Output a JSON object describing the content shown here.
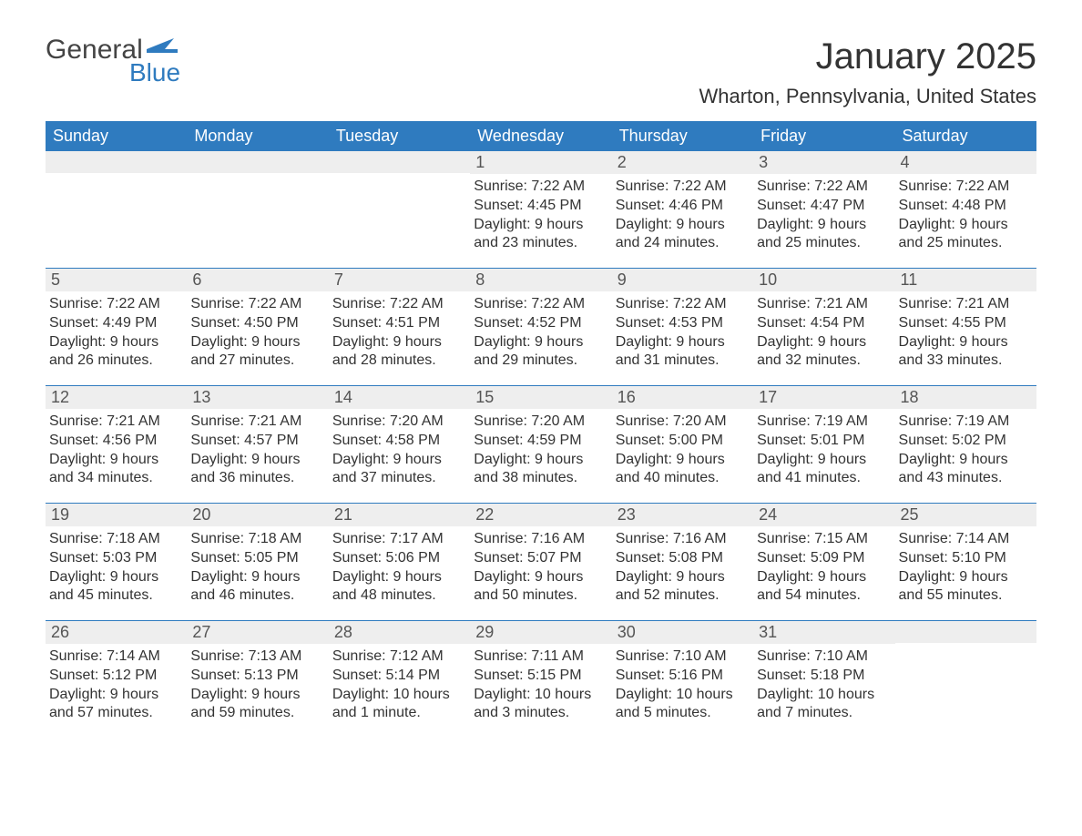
{
  "logo": {
    "general": "General",
    "blue": "Blue",
    "flag_color": "#2f7bbf"
  },
  "title": "January 2025",
  "location": "Wharton, Pennsylvania, United States",
  "header_bg": "#2f7bbf",
  "header_fg": "#ffffff",
  "daynum_bg": "#eeeeee",
  "row_border": "#2f7bbf",
  "weekdays": [
    "Sunday",
    "Monday",
    "Tuesday",
    "Wednesday",
    "Thursday",
    "Friday",
    "Saturday"
  ],
  "weeks": [
    [
      null,
      null,
      null,
      {
        "n": "1",
        "sunrise": "Sunrise: 7:22 AM",
        "sunset": "Sunset: 4:45 PM",
        "day1": "Daylight: 9 hours",
        "day2": "and 23 minutes."
      },
      {
        "n": "2",
        "sunrise": "Sunrise: 7:22 AM",
        "sunset": "Sunset: 4:46 PM",
        "day1": "Daylight: 9 hours",
        "day2": "and 24 minutes."
      },
      {
        "n": "3",
        "sunrise": "Sunrise: 7:22 AM",
        "sunset": "Sunset: 4:47 PM",
        "day1": "Daylight: 9 hours",
        "day2": "and 25 minutes."
      },
      {
        "n": "4",
        "sunrise": "Sunrise: 7:22 AM",
        "sunset": "Sunset: 4:48 PM",
        "day1": "Daylight: 9 hours",
        "day2": "and 25 minutes."
      }
    ],
    [
      {
        "n": "5",
        "sunrise": "Sunrise: 7:22 AM",
        "sunset": "Sunset: 4:49 PM",
        "day1": "Daylight: 9 hours",
        "day2": "and 26 minutes."
      },
      {
        "n": "6",
        "sunrise": "Sunrise: 7:22 AM",
        "sunset": "Sunset: 4:50 PM",
        "day1": "Daylight: 9 hours",
        "day2": "and 27 minutes."
      },
      {
        "n": "7",
        "sunrise": "Sunrise: 7:22 AM",
        "sunset": "Sunset: 4:51 PM",
        "day1": "Daylight: 9 hours",
        "day2": "and 28 minutes."
      },
      {
        "n": "8",
        "sunrise": "Sunrise: 7:22 AM",
        "sunset": "Sunset: 4:52 PM",
        "day1": "Daylight: 9 hours",
        "day2": "and 29 minutes."
      },
      {
        "n": "9",
        "sunrise": "Sunrise: 7:22 AM",
        "sunset": "Sunset: 4:53 PM",
        "day1": "Daylight: 9 hours",
        "day2": "and 31 minutes."
      },
      {
        "n": "10",
        "sunrise": "Sunrise: 7:21 AM",
        "sunset": "Sunset: 4:54 PM",
        "day1": "Daylight: 9 hours",
        "day2": "and 32 minutes."
      },
      {
        "n": "11",
        "sunrise": "Sunrise: 7:21 AM",
        "sunset": "Sunset: 4:55 PM",
        "day1": "Daylight: 9 hours",
        "day2": "and 33 minutes."
      }
    ],
    [
      {
        "n": "12",
        "sunrise": "Sunrise: 7:21 AM",
        "sunset": "Sunset: 4:56 PM",
        "day1": "Daylight: 9 hours",
        "day2": "and 34 minutes."
      },
      {
        "n": "13",
        "sunrise": "Sunrise: 7:21 AM",
        "sunset": "Sunset: 4:57 PM",
        "day1": "Daylight: 9 hours",
        "day2": "and 36 minutes."
      },
      {
        "n": "14",
        "sunrise": "Sunrise: 7:20 AM",
        "sunset": "Sunset: 4:58 PM",
        "day1": "Daylight: 9 hours",
        "day2": "and 37 minutes."
      },
      {
        "n": "15",
        "sunrise": "Sunrise: 7:20 AM",
        "sunset": "Sunset: 4:59 PM",
        "day1": "Daylight: 9 hours",
        "day2": "and 38 minutes."
      },
      {
        "n": "16",
        "sunrise": "Sunrise: 7:20 AM",
        "sunset": "Sunset: 5:00 PM",
        "day1": "Daylight: 9 hours",
        "day2": "and 40 minutes."
      },
      {
        "n": "17",
        "sunrise": "Sunrise: 7:19 AM",
        "sunset": "Sunset: 5:01 PM",
        "day1": "Daylight: 9 hours",
        "day2": "and 41 minutes."
      },
      {
        "n": "18",
        "sunrise": "Sunrise: 7:19 AM",
        "sunset": "Sunset: 5:02 PM",
        "day1": "Daylight: 9 hours",
        "day2": "and 43 minutes."
      }
    ],
    [
      {
        "n": "19",
        "sunrise": "Sunrise: 7:18 AM",
        "sunset": "Sunset: 5:03 PM",
        "day1": "Daylight: 9 hours",
        "day2": "and 45 minutes."
      },
      {
        "n": "20",
        "sunrise": "Sunrise: 7:18 AM",
        "sunset": "Sunset: 5:05 PM",
        "day1": "Daylight: 9 hours",
        "day2": "and 46 minutes."
      },
      {
        "n": "21",
        "sunrise": "Sunrise: 7:17 AM",
        "sunset": "Sunset: 5:06 PM",
        "day1": "Daylight: 9 hours",
        "day2": "and 48 minutes."
      },
      {
        "n": "22",
        "sunrise": "Sunrise: 7:16 AM",
        "sunset": "Sunset: 5:07 PM",
        "day1": "Daylight: 9 hours",
        "day2": "and 50 minutes."
      },
      {
        "n": "23",
        "sunrise": "Sunrise: 7:16 AM",
        "sunset": "Sunset: 5:08 PM",
        "day1": "Daylight: 9 hours",
        "day2": "and 52 minutes."
      },
      {
        "n": "24",
        "sunrise": "Sunrise: 7:15 AM",
        "sunset": "Sunset: 5:09 PM",
        "day1": "Daylight: 9 hours",
        "day2": "and 54 minutes."
      },
      {
        "n": "25",
        "sunrise": "Sunrise: 7:14 AM",
        "sunset": "Sunset: 5:10 PM",
        "day1": "Daylight: 9 hours",
        "day2": "and 55 minutes."
      }
    ],
    [
      {
        "n": "26",
        "sunrise": "Sunrise: 7:14 AM",
        "sunset": "Sunset: 5:12 PM",
        "day1": "Daylight: 9 hours",
        "day2": "and 57 minutes."
      },
      {
        "n": "27",
        "sunrise": "Sunrise: 7:13 AM",
        "sunset": "Sunset: 5:13 PM",
        "day1": "Daylight: 9 hours",
        "day2": "and 59 minutes."
      },
      {
        "n": "28",
        "sunrise": "Sunrise: 7:12 AM",
        "sunset": "Sunset: 5:14 PM",
        "day1": "Daylight: 10 hours",
        "day2": "and 1 minute."
      },
      {
        "n": "29",
        "sunrise": "Sunrise: 7:11 AM",
        "sunset": "Sunset: 5:15 PM",
        "day1": "Daylight: 10 hours",
        "day2": "and 3 minutes."
      },
      {
        "n": "30",
        "sunrise": "Sunrise: 7:10 AM",
        "sunset": "Sunset: 5:16 PM",
        "day1": "Daylight: 10 hours",
        "day2": "and 5 minutes."
      },
      {
        "n": "31",
        "sunrise": "Sunrise: 7:10 AM",
        "sunset": "Sunset: 5:18 PM",
        "day1": "Daylight: 10 hours",
        "day2": "and 7 minutes."
      },
      null
    ]
  ]
}
